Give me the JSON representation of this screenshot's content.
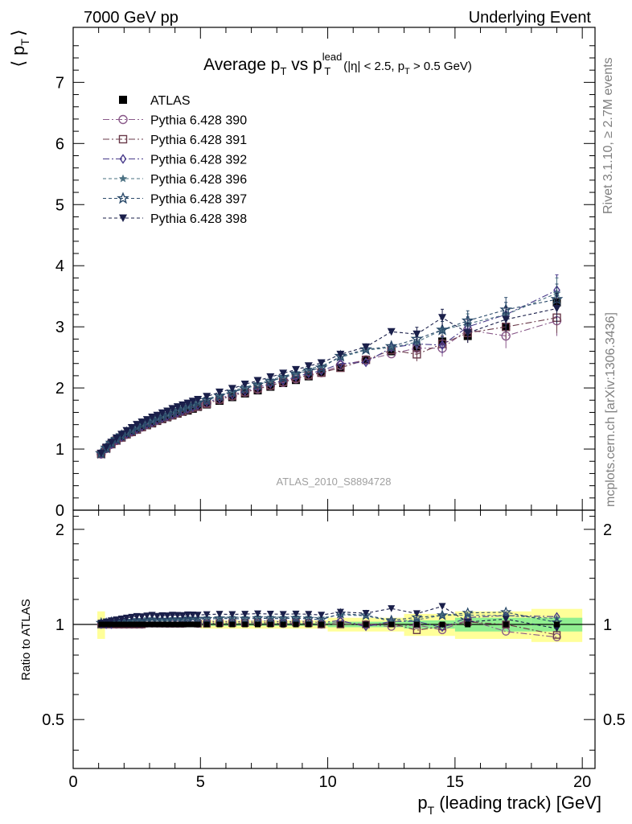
{
  "header": {
    "left": "7000 GeV pp",
    "right": "Underlying Event"
  },
  "side_labels": {
    "rivet": "Rivet 3.1.10, ≥ 2.7M events",
    "mcplots": "mcplots.cern.ch [arXiv:1306.3436]"
  },
  "reference": "ATLAS_2010_S8894728",
  "chart_data": [
    {
      "type": "scatter",
      "panel": "main",
      "title": "Average p_T vs p_T^lead (|η| < 2.5, p_T > 0.5 GeV)",
      "title_parts": {
        "main": "Average p",
        "main_sub": "T",
        "vs": " vs p",
        "vs_sup": "lead",
        "vs_sub": "T",
        "cut": "(|η| < 2.5, p",
        "cut_sub": "T",
        "cut_end": " > 0.5 GeV)"
      },
      "ylabel": "⟨ p_T ⟩",
      "ylabel_parts": {
        "open": "⟨ p",
        "sub": "T",
        "close": "⟩"
      },
      "xlabel": "",
      "ylim": [
        0,
        7.9
      ],
      "yticks": [
        "0",
        "1",
        "2",
        "3",
        "4",
        "5",
        "6",
        "7"
      ],
      "x": [
        1.1,
        1.3,
        1.5,
        1.7,
        1.9,
        2.1,
        2.3,
        2.5,
        2.7,
        2.9,
        3.1,
        3.3,
        3.5,
        3.7,
        3.9,
        4.1,
        4.3,
        4.5,
        4.7,
        4.9,
        5.25,
        5.75,
        6.25,
        6.75,
        7.25,
        7.75,
        8.25,
        8.75,
        9.25,
        9.75,
        10.5,
        11.5,
        12.5,
        13.5,
        14.5,
        15.5,
        17.0,
        19.0
      ],
      "series": [
        {
          "name": "ATLAS",
          "marker": "filled-square",
          "color": "#000000",
          "values": [
            0.92,
            1.01,
            1.08,
            1.14,
            1.19,
            1.24,
            1.28,
            1.32,
            1.36,
            1.39,
            1.42,
            1.46,
            1.49,
            1.52,
            1.55,
            1.58,
            1.61,
            1.63,
            1.66,
            1.69,
            1.73,
            1.79,
            1.85,
            1.91,
            1.96,
            2.02,
            2.08,
            2.13,
            2.19,
            2.25,
            2.33,
            2.46,
            2.6,
            2.66,
            2.76,
            2.85,
            3.0,
            3.4
          ]
        },
        {
          "name": "Pythia 6.428 390",
          "marker": "open-circle",
          "color": "#8a5a8a",
          "dash": "8,3,2,3",
          "values": [
            0.92,
            1.01,
            1.08,
            1.14,
            1.19,
            1.24,
            1.28,
            1.32,
            1.36,
            1.4,
            1.43,
            1.47,
            1.5,
            1.53,
            1.56,
            1.59,
            1.62,
            1.65,
            1.68,
            1.7,
            1.75,
            1.81,
            1.87,
            1.93,
            1.98,
            2.04,
            2.09,
            2.15,
            2.21,
            2.25,
            2.37,
            2.46,
            2.56,
            2.65,
            2.65,
            2.95,
            2.85,
            3.1
          ]
        },
        {
          "name": "Pythia 6.428 391",
          "marker": "open-square",
          "color": "#6a3a4a",
          "dash": "8,3,2,3",
          "values": [
            0.92,
            1.01,
            1.08,
            1.14,
            1.19,
            1.24,
            1.28,
            1.32,
            1.36,
            1.4,
            1.43,
            1.47,
            1.5,
            1.53,
            1.56,
            1.59,
            1.62,
            1.65,
            1.68,
            1.7,
            1.74,
            1.81,
            1.87,
            1.93,
            1.99,
            2.04,
            2.1,
            2.16,
            2.21,
            2.25,
            2.33,
            2.46,
            2.62,
            2.55,
            2.72,
            2.9,
            3.0,
            3.15
          ]
        },
        {
          "name": "Pythia 6.428 392",
          "marker": "open-diamond",
          "color": "#483a8a",
          "dash": "8,3,2,3",
          "values": [
            0.92,
            1.01,
            1.08,
            1.15,
            1.2,
            1.25,
            1.29,
            1.33,
            1.37,
            1.41,
            1.44,
            1.48,
            1.51,
            1.54,
            1.57,
            1.6,
            1.63,
            1.66,
            1.69,
            1.72,
            1.77,
            1.83,
            1.89,
            1.95,
            2.01,
            2.07,
            2.12,
            2.18,
            2.24,
            2.28,
            2.4,
            2.42,
            2.66,
            2.72,
            2.7,
            3.0,
            3.2,
            3.6
          ]
        },
        {
          "name": "Pythia 6.428 396",
          "marker": "filled-star",
          "color": "#4a7082",
          "dash": "4,3",
          "values": [
            0.93,
            1.02,
            1.1,
            1.17,
            1.22,
            1.28,
            1.32,
            1.37,
            1.41,
            1.45,
            1.48,
            1.52,
            1.55,
            1.58,
            1.62,
            1.65,
            1.68,
            1.71,
            1.74,
            1.77,
            1.82,
            1.88,
            1.95,
            2.01,
            2.07,
            2.13,
            2.19,
            2.25,
            2.31,
            2.36,
            2.5,
            2.62,
            2.66,
            2.75,
            2.95,
            3.05,
            3.2,
            3.55
          ]
        },
        {
          "name": "Pythia 6.428 397",
          "marker": "open-star",
          "color": "#2a4a6a",
          "dash": "4,3",
          "values": [
            0.93,
            1.02,
            1.1,
            1.16,
            1.22,
            1.27,
            1.31,
            1.36,
            1.4,
            1.43,
            1.47,
            1.51,
            1.54,
            1.57,
            1.6,
            1.63,
            1.67,
            1.7,
            1.72,
            1.76,
            1.8,
            1.87,
            1.93,
            1.99,
            2.05,
            2.11,
            2.17,
            2.23,
            2.28,
            2.33,
            2.52,
            2.63,
            2.68,
            2.8,
            2.95,
            3.1,
            3.28,
            3.45
          ]
        },
        {
          "name": "Pythia 6.428 398",
          "marker": "filled-triangle-down",
          "color": "#1a1f4a",
          "dash": "4,3",
          "values": [
            0.93,
            1.03,
            1.11,
            1.18,
            1.24,
            1.3,
            1.35,
            1.4,
            1.44,
            1.48,
            1.52,
            1.55,
            1.59,
            1.62,
            1.66,
            1.69,
            1.72,
            1.75,
            1.78,
            1.81,
            1.86,
            1.93,
            1.99,
            2.06,
            2.12,
            2.18,
            2.24,
            2.3,
            2.36,
            2.41,
            2.55,
            2.67,
            2.92,
            2.88,
            3.15,
            2.9,
            3.12,
            3.3
          ]
        }
      ]
    },
    {
      "type": "scatter",
      "panel": "ratio",
      "title": "",
      "ylabel": "Ratio to ATLAS",
      "xlabel": "p_T (leading track) [GeV]",
      "xlabel_parts": {
        "main": "p",
        "sub": "T",
        "rest": " (leading track) [GeV]"
      },
      "xlim": [
        0,
        20.5
      ],
      "xticks": [
        "0",
        "5",
        "10",
        "15",
        "20"
      ],
      "ylim": [
        0.35,
        2.3
      ],
      "yticks": [
        "0.5",
        "1",
        "2"
      ],
      "yscale": "log",
      "band_colors": {
        "inner": "#90ee90",
        "outer": "#ffff99"
      },
      "bands": [
        {
          "x_from": 0.95,
          "x_to": 1.25,
          "inner": 0.03,
          "outer": 0.1
        },
        {
          "x_from": 1.25,
          "x_to": 5.0,
          "inner": 0.01,
          "outer": 0.02
        },
        {
          "x_from": 5.0,
          "x_to": 10.0,
          "inner": 0.01,
          "outer": 0.03
        },
        {
          "x_from": 10.0,
          "x_to": 13.0,
          "inner": 0.02,
          "outer": 0.05
        },
        {
          "x_from": 13.0,
          "x_to": 15.0,
          "inner": 0.03,
          "outer": 0.08
        },
        {
          "x_from": 15.0,
          "x_to": 18.0,
          "inner": 0.05,
          "outer": 0.1
        },
        {
          "x_from": 18.0,
          "x_to": 20.0,
          "inner": 0.05,
          "outer": 0.12
        }
      ]
    }
  ]
}
